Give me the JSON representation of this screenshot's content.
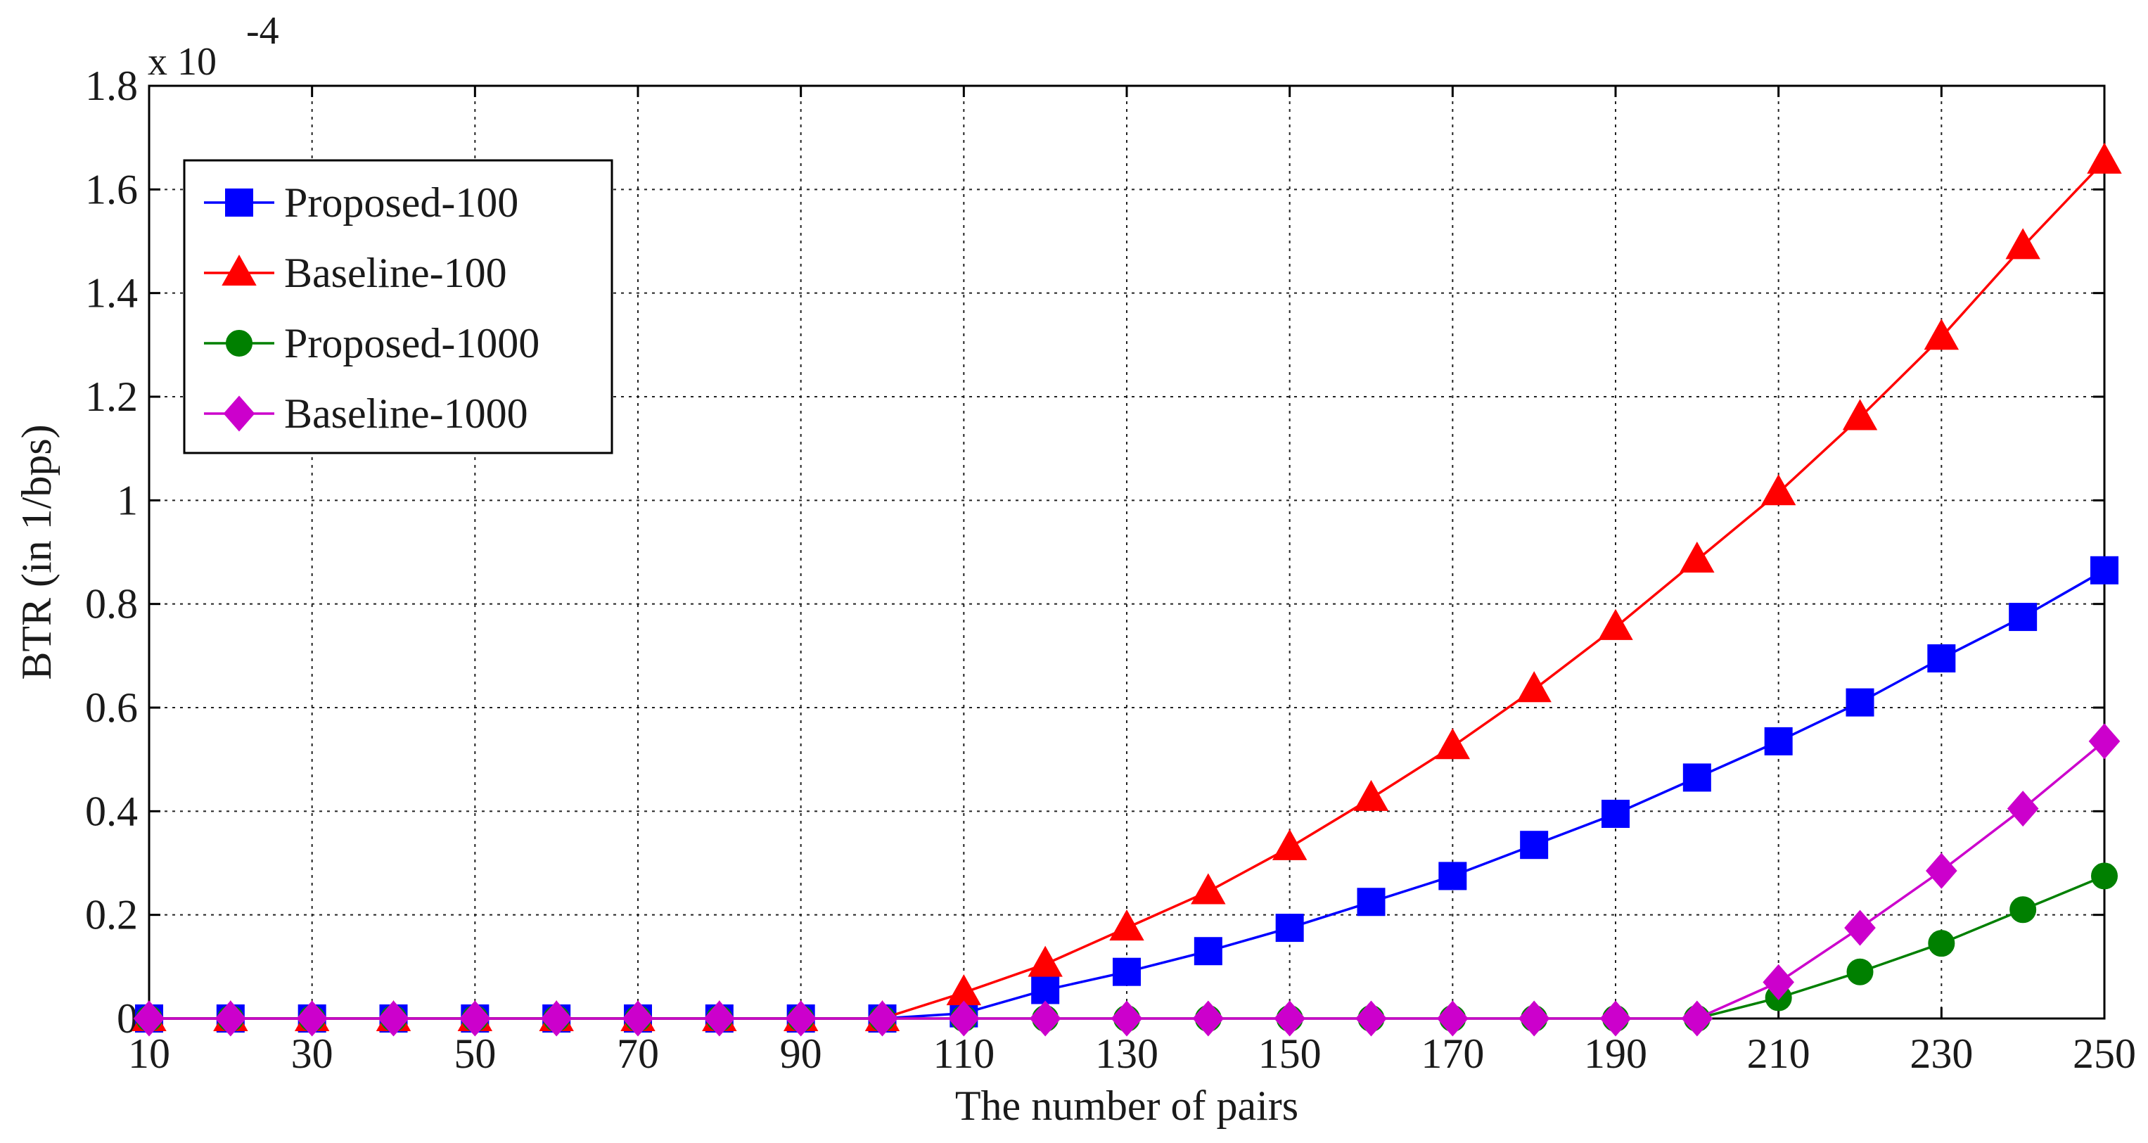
{
  "chart_data": {
    "type": "line",
    "title": "",
    "xlabel": "The number of pairs",
    "ylabel": "BTR (in 1/bps)",
    "y_exponent_label": "x 10",
    "y_exponent_power": "-4",
    "xlim": [
      10,
      250
    ],
    "ylim": [
      0,
      1.8
    ],
    "grid": true,
    "legend_position": "top-left",
    "x_ticks": [
      "10",
      "30",
      "50",
      "70",
      "90",
      "110",
      "130",
      "150",
      "170",
      "190",
      "210",
      "230",
      "250"
    ],
    "y_ticks": [
      "0",
      "0.2",
      "0.4",
      "0.6",
      "0.8",
      "1",
      "1.2",
      "1.4",
      "1.6",
      "1.8"
    ],
    "x": [
      10,
      20,
      30,
      40,
      50,
      60,
      70,
      80,
      90,
      100,
      110,
      120,
      130,
      140,
      150,
      160,
      170,
      180,
      190,
      200,
      210,
      220,
      230,
      240,
      250
    ],
    "series": [
      {
        "name": "Proposed-100",
        "color": "#0000ff",
        "marker": "square",
        "values": [
          0,
          0,
          0,
          0,
          0,
          0,
          0,
          0,
          0,
          0,
          0.01,
          0.055,
          0.09,
          0.13,
          0.175,
          0.225,
          0.275,
          0.335,
          0.395,
          0.465,
          0.535,
          0.61,
          0.695,
          0.775,
          0.865
        ]
      },
      {
        "name": "Baseline-100",
        "color": "#ff0000",
        "marker": "triangle",
        "values": [
          0,
          0,
          0,
          0,
          0,
          0,
          0,
          0,
          0,
          0,
          0.05,
          0.105,
          0.175,
          0.245,
          0.33,
          0.425,
          0.525,
          0.635,
          0.755,
          0.885,
          1.015,
          1.16,
          1.315,
          1.49,
          1.655
        ]
      },
      {
        "name": "Proposed-1000",
        "color": "#008000",
        "marker": "circle",
        "values": [
          0,
          0,
          0,
          0,
          0,
          0,
          0,
          0,
          0,
          0,
          0,
          0,
          0,
          0,
          0,
          0,
          0,
          0,
          0,
          0,
          0.04,
          0.09,
          0.145,
          0.21,
          0.275
        ]
      },
      {
        "name": "Baseline-1000",
        "color": "#cc00cc",
        "marker": "diamond",
        "values": [
          0,
          0,
          0,
          0,
          0,
          0,
          0,
          0,
          0,
          0,
          0,
          0,
          0,
          0,
          0,
          0,
          0,
          0,
          0,
          0,
          0.07,
          0.175,
          0.285,
          0.405,
          0.535
        ]
      }
    ]
  }
}
